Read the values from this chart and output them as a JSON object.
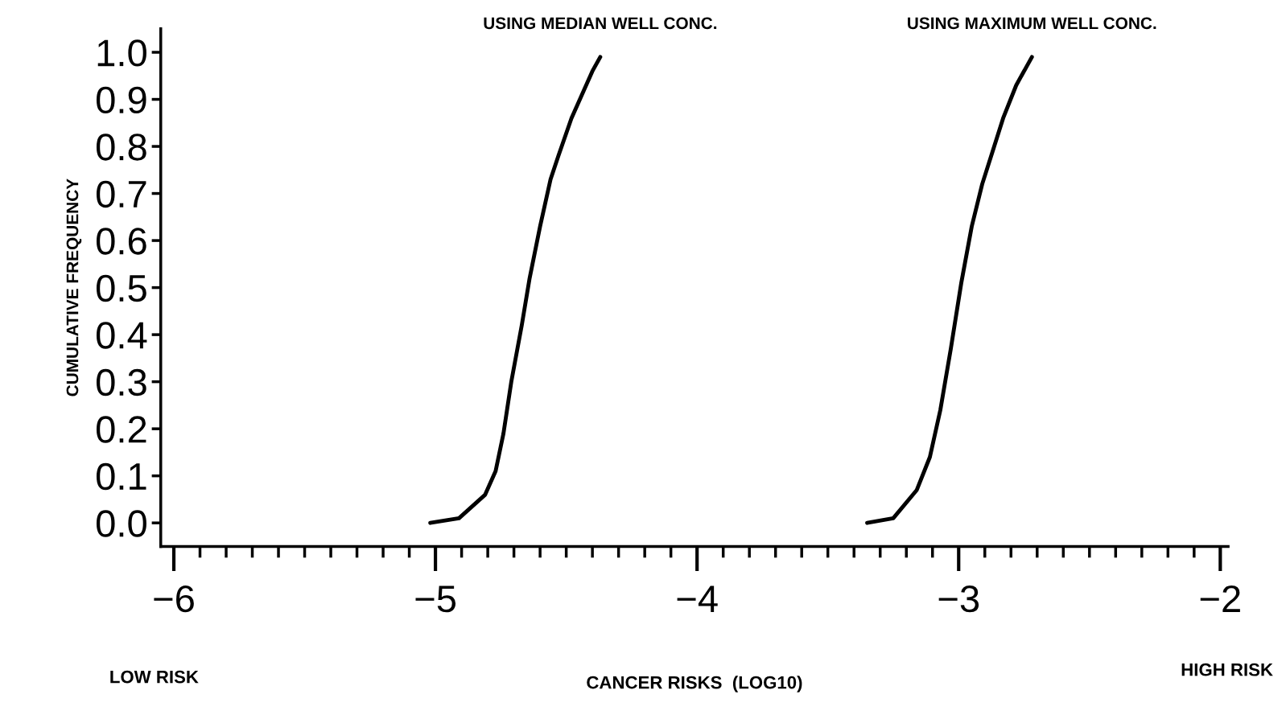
{
  "chart_data": {
    "type": "line",
    "xlabel": "CANCER RISKS  (LOG10)",
    "ylabel": "CUMULATIVE FREQUENCY",
    "series": [
      {
        "name": "USING MEDIAN WELL CONC.",
        "color": "#000000",
        "x": [
          -5.02,
          -4.91,
          -4.81,
          -4.77,
          -4.74,
          -4.71,
          -4.67,
          -4.64,
          -4.6,
          -4.56,
          -4.53,
          -4.48,
          -4.44,
          -4.4,
          -4.37
        ],
        "values": [
          0.0,
          0.01,
          0.06,
          0.11,
          0.19,
          0.3,
          0.42,
          0.52,
          0.63,
          0.73,
          0.78,
          0.86,
          0.91,
          0.96,
          0.99
        ]
      },
      {
        "name": "USING MAXIMUM WELL CONC.",
        "color": "#000000",
        "x": [
          -3.35,
          -3.25,
          -3.16,
          -3.11,
          -3.07,
          -3.03,
          -2.99,
          -2.95,
          -2.91,
          -2.87,
          -2.83,
          -2.78,
          -2.72
        ],
        "values": [
          0.0,
          0.01,
          0.07,
          0.14,
          0.24,
          0.37,
          0.51,
          0.63,
          0.72,
          0.79,
          0.86,
          0.93,
          0.99
        ]
      }
    ],
    "annotations": [
      "LOW RISK",
      "HIGH RISK"
    ],
    "xlim": [
      -6.05,
      -1.97
    ],
    "xticks": [
      -6,
      -5,
      -4,
      -3,
      -2
    ],
    "ylim": [
      -0.05,
      1.05
    ],
    "yticks": [
      {
        "value": 0,
        "label": "0.0"
      },
      {
        "value": 0.1,
        "label": "0.1"
      },
      {
        "value": 0.2,
        "label": "0.2"
      },
      {
        "value": 0.3,
        "label": "0.3"
      },
      {
        "value": 0.4,
        "label": "0.4"
      },
      {
        "value": 0.5,
        "label": "0.5"
      },
      {
        "value": 0.6,
        "label": "0.6"
      },
      {
        "value": 0.7,
        "label": "0.7"
      },
      {
        "value": 0.8,
        "label": "0.8"
      },
      {
        "value": 0.9,
        "label": "0.9"
      },
      {
        "value": 1,
        "label": "1.0"
      }
    ],
    "grid": false,
    "legend": false,
    "marker": "none",
    "line_style": "solid"
  }
}
